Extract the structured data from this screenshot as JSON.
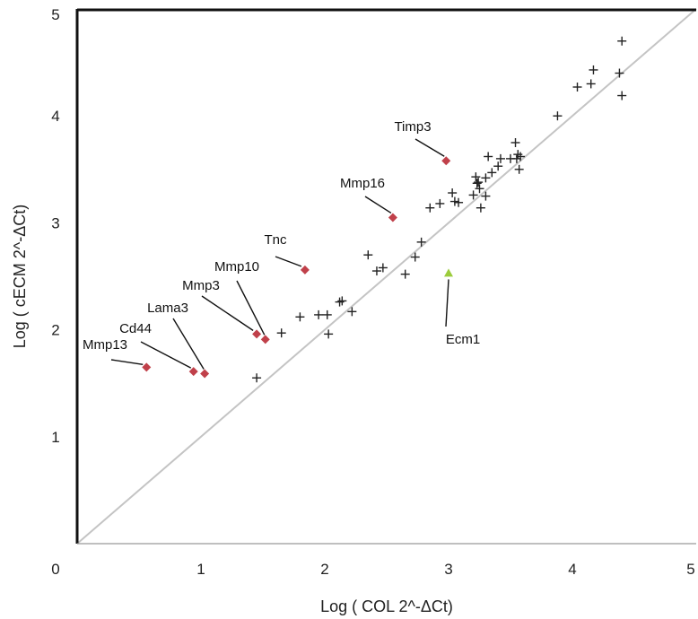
{
  "chart_data": {
    "type": "scatter",
    "xlabel": "Log ( COL 2^-ΔCt)",
    "ylabel": "Log ( cECM 2^-ΔCt)",
    "xlim": [
      0,
      5
    ],
    "ylim": [
      0,
      5
    ],
    "x_ticks": [
      "0",
      "1",
      "2",
      "3",
      "4",
      "5"
    ],
    "y_ticks": [
      "1",
      "2",
      "3",
      "4",
      "5"
    ],
    "grid": false,
    "reference_line": {
      "from": [
        0,
        0
      ],
      "to": [
        5,
        5
      ],
      "color": "#c4c4c4"
    },
    "series": [
      {
        "marker": "plus",
        "color": "#222222",
        "points": [
          [
            1.45,
            1.55
          ],
          [
            1.65,
            1.97
          ],
          [
            1.8,
            2.12
          ],
          [
            1.95,
            2.14
          ],
          [
            2.02,
            2.14
          ],
          [
            2.03,
            1.96
          ],
          [
            2.12,
            2.26
          ],
          [
            2.14,
            2.27
          ],
          [
            2.22,
            2.17
          ],
          [
            2.35,
            2.7
          ],
          [
            2.42,
            2.55
          ],
          [
            2.47,
            2.58
          ],
          [
            2.65,
            2.52
          ],
          [
            2.73,
            2.68
          ],
          [
            2.78,
            2.82
          ],
          [
            2.85,
            3.14
          ],
          [
            2.93,
            3.18
          ],
          [
            3.03,
            3.28
          ],
          [
            3.05,
            3.2
          ],
          [
            3.08,
            3.19
          ],
          [
            3.2,
            3.26
          ],
          [
            3.22,
            3.43
          ],
          [
            3.23,
            3.37
          ],
          [
            3.24,
            3.38
          ],
          [
            3.25,
            3.32
          ],
          [
            3.26,
            3.14
          ],
          [
            3.3,
            3.42
          ],
          [
            3.3,
            3.25
          ],
          [
            3.32,
            3.62
          ],
          [
            3.35,
            3.47
          ],
          [
            3.4,
            3.53
          ],
          [
            3.42,
            3.6
          ],
          [
            3.5,
            3.6
          ],
          [
            3.54,
            3.75
          ],
          [
            3.55,
            3.6
          ],
          [
            3.56,
            3.64
          ],
          [
            3.57,
            3.5
          ],
          [
            3.58,
            3.62
          ],
          [
            3.88,
            4.0
          ],
          [
            4.04,
            4.27
          ],
          [
            4.15,
            4.3
          ],
          [
            4.17,
            4.43
          ],
          [
            4.38,
            4.4
          ],
          [
            4.4,
            4.19
          ],
          [
            4.4,
            4.7
          ]
        ]
      },
      {
        "marker": "diamond",
        "color": "#c0404a",
        "points": [
          {
            "x": 0.56,
            "y": 1.65,
            "label": "Mmp13"
          },
          {
            "x": 0.94,
            "y": 1.61,
            "label": "Cd44"
          },
          {
            "x": 1.03,
            "y": 1.59,
            "label": "Lama3"
          },
          {
            "x": 1.45,
            "y": 1.96,
            "label": "Mmp3"
          },
          {
            "x": 1.52,
            "y": 1.91,
            "label": "Mmp10"
          },
          {
            "x": 1.84,
            "y": 2.56,
            "label": "Tnc"
          },
          {
            "x": 2.55,
            "y": 3.05,
            "label": "Mmp16"
          },
          {
            "x": 2.98,
            "y": 3.58,
            "label": "Timp3"
          }
        ]
      },
      {
        "marker": "triangle",
        "color": "#9ccc3c",
        "points": [
          {
            "x": 3.0,
            "y": 2.53,
            "label": "Ecm1"
          }
        ]
      }
    ]
  }
}
